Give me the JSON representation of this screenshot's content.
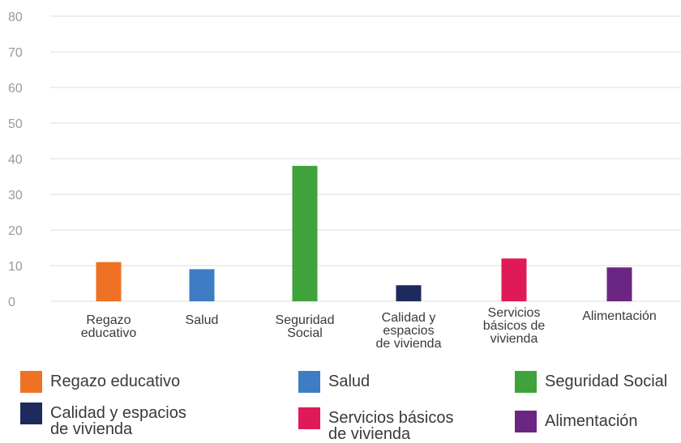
{
  "chart_data": {
    "type": "bar",
    "title": "",
    "xlabel": "",
    "ylabel": "",
    "ylim": [
      0,
      80
    ],
    "yticks": [
      "0",
      "10",
      "20",
      "30",
      "40",
      "50",
      "60",
      "70",
      "80"
    ],
    "grid": true,
    "legend_position": "bottom",
    "categories": [
      "Regazo\neducativo",
      "Salud",
      "Seguridad\nSocial",
      "Calidad y\nespacios\nde vivienda",
      "Servicios\nbásicos de\nvivienda",
      "Alimentación"
    ],
    "values": [
      11,
      9,
      38,
      4.5,
      12,
      9.5
    ],
    "colors": [
      "#EE7124",
      "#3E7CC4",
      "#3FA23A",
      "#1E2A5C",
      "#E01A59",
      "#6B2683"
    ],
    "legend": [
      "Regazo educativo",
      "Salud",
      "Seguridad Social",
      "Calidad y espacios\nde vivienda",
      "Servicios básicos\nde vivienda",
      "Alimentación"
    ]
  }
}
